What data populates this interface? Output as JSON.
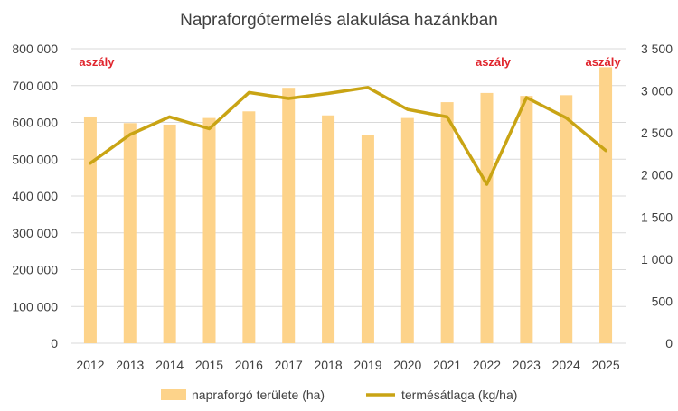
{
  "chart_data": {
    "type": "bar+line",
    "title": "Napraforgótermelés alakulása hazánkban",
    "categories": [
      "2012",
      "2013",
      "2014",
      "2015",
      "2016",
      "2017",
      "2018",
      "2019",
      "2020",
      "2021",
      "2022",
      "2023",
      "2024",
      "2025"
    ],
    "series": [
      {
        "name": "napraforgó területe (ha)",
        "type": "bar",
        "axis": "left",
        "color": "#FDD38A",
        "values": [
          616000,
          598000,
          594000,
          612000,
          630000,
          694000,
          619000,
          565000,
          612000,
          655000,
          680000,
          672000,
          674000,
          750000
        ]
      },
      {
        "name": "termésátlaga (kg/ha)",
        "type": "line",
        "axis": "right",
        "color": "#C9A414",
        "values": [
          2140,
          2480,
          2690,
          2550,
          2980,
          2910,
          2970,
          3040,
          2780,
          2690,
          1890,
          2920,
          2680,
          2290
        ]
      }
    ],
    "yleft": {
      "min": 0,
      "max": 800000,
      "ticks": [
        0,
        100000,
        200000,
        300000,
        400000,
        500000,
        600000,
        700000,
        800000
      ],
      "tick_labels": [
        "0",
        "100 000",
        "200 000",
        "300 000",
        "400 000",
        "500 000",
        "600 000",
        "700 000",
        "800 000"
      ]
    },
    "yright": {
      "min": 0,
      "max": 3500,
      "ticks": [
        0,
        500,
        1000,
        1500,
        2000,
        2500,
        3000,
        3500
      ],
      "tick_labels": [
        "0",
        "500",
        "1 000",
        "1 500",
        "2 000",
        "2 500",
        "3 000",
        "3 500"
      ]
    },
    "annotations": [
      {
        "text": "aszály",
        "year": "2012"
      },
      {
        "text": "aszály",
        "year": "2022"
      },
      {
        "text": "aszály",
        "year": "2025"
      }
    ],
    "annotation_color": "#E0242C",
    "grid": true,
    "legend_position": "bottom"
  }
}
